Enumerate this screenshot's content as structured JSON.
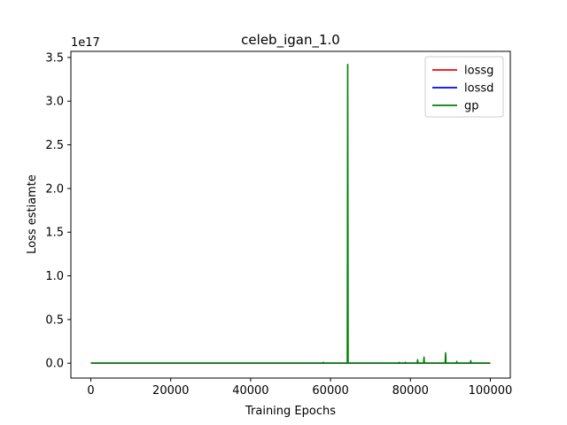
{
  "chart_data": {
    "type": "line",
    "title": "celeb_igan_1.0",
    "xlabel": "Training Epochs",
    "ylabel": "Loss estiamte",
    "y_offset_label": "1e17",
    "xlim": [
      -5000,
      105000
    ],
    "ylim": [
      -0.17,
      3.57
    ],
    "x_ticks": [
      0,
      20000,
      40000,
      60000,
      80000,
      100000
    ],
    "x_tick_labels": [
      "0",
      "20000",
      "40000",
      "60000",
      "80000",
      "100000"
    ],
    "y_ticks": [
      0.0,
      0.5,
      1.0,
      1.5,
      2.0,
      2.5,
      3.0,
      3.5
    ],
    "y_tick_labels": [
      "0.0",
      "0.5",
      "1.0",
      "1.5",
      "2.0",
      "2.5",
      "3.0",
      "3.5"
    ],
    "legend_position": "top-right",
    "grid": false,
    "series": [
      {
        "name": "lossg",
        "color": "#ff0000",
        "points": [
          [
            0,
            0
          ],
          [
            100000,
            0
          ]
        ]
      },
      {
        "name": "lossd",
        "color": "#0000ff",
        "points": [
          [
            0,
            0
          ],
          [
            100000,
            0
          ]
        ]
      },
      {
        "name": "gp",
        "color": "#008000",
        "points": [
          [
            0,
            0
          ],
          [
            58000,
            0
          ],
          [
            58200,
            0.01
          ],
          [
            58400,
            0
          ],
          [
            64200,
            0
          ],
          [
            64300,
            3.42
          ],
          [
            64400,
            0
          ],
          [
            77000,
            0
          ],
          [
            77200,
            0.01
          ],
          [
            77400,
            0
          ],
          [
            78500,
            0
          ],
          [
            78700,
            0.01
          ],
          [
            78900,
            0
          ],
          [
            81700,
            0
          ],
          [
            81800,
            0.04
          ],
          [
            81900,
            0
          ],
          [
            83300,
            0
          ],
          [
            83400,
            0.07
          ],
          [
            83500,
            0
          ],
          [
            88700,
            0
          ],
          [
            88800,
            0.12
          ],
          [
            88900,
            0
          ],
          [
            91500,
            0
          ],
          [
            91600,
            0.02
          ],
          [
            91700,
            0
          ],
          [
            95000,
            0
          ],
          [
            95100,
            0.03
          ],
          [
            95200,
            0
          ],
          [
            100000,
            0
          ]
        ]
      }
    ]
  }
}
